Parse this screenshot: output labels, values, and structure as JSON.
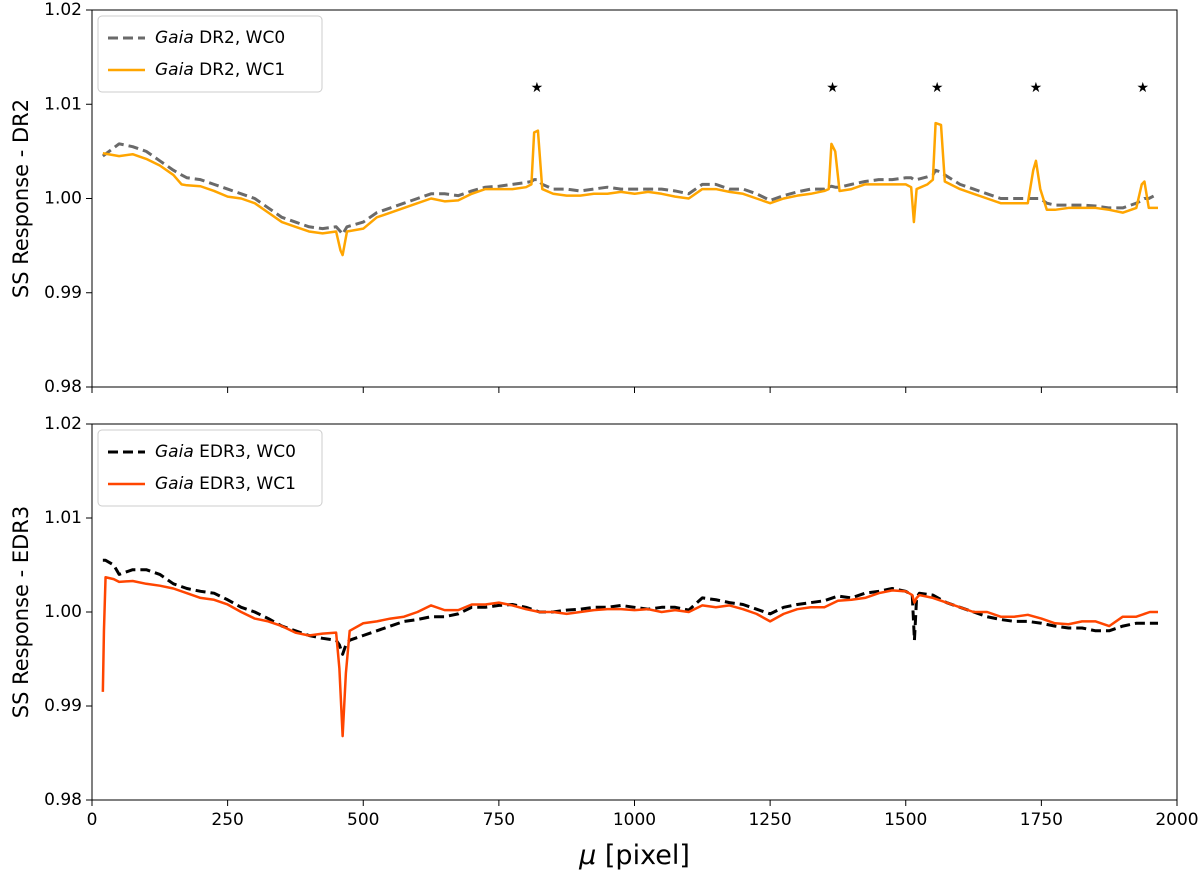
{
  "chart_data": [
    {
      "type": "line",
      "ylabel": "SS Response - DR2",
      "xlim": [
        0,
        2000
      ],
      "ylim": [
        0.98,
        1.02
      ],
      "xticks": [
        0,
        250,
        500,
        750,
        1000,
        1250,
        1500,
        1750,
        2000
      ],
      "xticklabels": false,
      "yticks": [
        0.98,
        0.99,
        {
          "value": 1.0,
          "label": "1.00"
        },
        1.01,
        1.02
      ],
      "legend": "upper left",
      "x": [
        20,
        50,
        75,
        100,
        125,
        150,
        165,
        175,
        200,
        225,
        250,
        275,
        300,
        325,
        350,
        375,
        400,
        425,
        450,
        458,
        462,
        470,
        500,
        525,
        550,
        575,
        600,
        625,
        650,
        675,
        700,
        725,
        750,
        775,
        800,
        810,
        815,
        822,
        830,
        850,
        875,
        900,
        925,
        950,
        975,
        1000,
        1025,
        1050,
        1075,
        1100,
        1125,
        1150,
        1175,
        1200,
        1225,
        1250,
        1275,
        1300,
        1325,
        1350,
        1358,
        1363,
        1370,
        1378,
        1400,
        1425,
        1450,
        1475,
        1500,
        1510,
        1515,
        1520,
        1540,
        1550,
        1555,
        1565,
        1572,
        1600,
        1625,
        1650,
        1675,
        1700,
        1725,
        1735,
        1740,
        1748,
        1760,
        1775,
        1800,
        1825,
        1850,
        1875,
        1900,
        1925,
        1935,
        1940,
        1948,
        1965
      ],
      "series": [
        {
          "name": "Gaia DR2, WC0",
          "color": "#6a6a6a",
          "dashed": true,
          "values": [
            1.0045,
            1.0058,
            1.0055,
            1.005,
            1.004,
            1.003,
            1.0025,
            1.0022,
            1.002,
            1.0015,
            1.001,
            1.0005,
            1.0,
            0.999,
            0.998,
            0.9975,
            0.997,
            0.9968,
            0.997,
            0.9965,
            0.9962,
            0.997,
            0.9975,
            0.9985,
            0.999,
            0.9995,
            1.0,
            1.0005,
            1.0005,
            1.0003,
            1.0008,
            1.0012,
            1.0013,
            1.0015,
            1.0017,
            1.0018,
            1.002,
            1.002,
            1.0015,
            1.001,
            1.001,
            1.0008,
            1.001,
            1.0012,
            1.001,
            1.001,
            1.001,
            1.001,
            1.0008,
            1.0005,
            1.0015,
            1.0015,
            1.001,
            1.001,
            1.0005,
            0.9998,
            1.0003,
            1.0007,
            1.001,
            1.001,
            1.0012,
            1.0013,
            1.0012,
            1.0012,
            1.0015,
            1.0018,
            1.002,
            1.002,
            1.0022,
            1.0022,
            1.002,
            1.002,
            1.0023,
            1.0025,
            1.003,
            1.0028,
            1.0025,
            1.0015,
            1.001,
            1.0005,
            1.0,
            1.0,
            1.0,
            1.0,
            1.0,
            1.0,
            0.9995,
            0.9993,
            0.9993,
            0.9993,
            0.9992,
            0.999,
            0.999,
            0.9995,
            0.9998,
            1.0,
            1.0,
            1.0005
          ]
        },
        {
          "name": "Gaia DR2, WC1",
          "color": "#ffa500",
          "dashed": false,
          "values": [
            1.0048,
            1.0045,
            1.0047,
            1.0042,
            1.0035,
            1.0025,
            1.0015,
            1.0014,
            1.0013,
            1.0008,
            1.0002,
            1.0,
            0.9995,
            0.9985,
            0.9975,
            0.997,
            0.9965,
            0.9963,
            0.9965,
            0.9945,
            0.994,
            0.9965,
            0.9968,
            0.998,
            0.9985,
            0.999,
            0.9995,
            1.0,
            0.9997,
            0.9998,
            1.0005,
            1.001,
            1.001,
            1.001,
            1.0012,
            1.0015,
            1.007,
            1.0072,
            1.001,
            1.0005,
            1.0003,
            1.0003,
            1.0005,
            1.0005,
            1.0007,
            1.0005,
            1.0007,
            1.0005,
            1.0002,
            1.0,
            1.001,
            1.001,
            1.0007,
            1.0005,
            1.0,
            0.9995,
            1.0,
            1.0003,
            1.0005,
            1.0008,
            1.001,
            1.0058,
            1.005,
            1.0008,
            1.001,
            1.0015,
            1.0015,
            1.0015,
            1.0015,
            1.0012,
            0.9975,
            1.001,
            1.0015,
            1.002,
            1.008,
            1.0078,
            1.0018,
            1.001,
            1.0005,
            1.0,
            0.9995,
            0.9995,
            0.9995,
            1.003,
            1.004,
            1.001,
            0.9988,
            0.9988,
            0.999,
            0.999,
            0.999,
            0.9988,
            0.9985,
            0.999,
            1.0015,
            1.0018,
            0.999,
            0.999
          ]
        }
      ],
      "annotations": [
        {
          "text": "★",
          "x": 820,
          "y": 1.0117
        },
        {
          "text": "★",
          "x": 1365,
          "y": 1.0117
        },
        {
          "text": "★",
          "x": 1558,
          "y": 1.0117
        },
        {
          "text": "★",
          "x": 1740,
          "y": 1.0117
        },
        {
          "text": "★",
          "x": 1937,
          "y": 1.0117
        }
      ]
    },
    {
      "type": "line",
      "ylabel": "SS Response - EDR3",
      "xlabel": "μ [pixel]",
      "xlim": [
        0,
        2000
      ],
      "ylim": [
        0.98,
        1.02
      ],
      "xticks": [
        0,
        250,
        500,
        750,
        1000,
        1250,
        1500,
        1750,
        2000
      ],
      "xticklabels": true,
      "yticks": [
        0.98,
        0.99,
        {
          "value": 1.0,
          "label": "1.00"
        },
        1.01,
        1.02
      ],
      "legend": "upper left",
      "x": [
        20,
        22,
        25,
        40,
        50,
        75,
        100,
        125,
        150,
        175,
        200,
        225,
        250,
        275,
        300,
        325,
        350,
        375,
        400,
        425,
        450,
        456,
        462,
        468,
        475,
        500,
        525,
        550,
        575,
        600,
        625,
        650,
        675,
        700,
        725,
        750,
        775,
        800,
        825,
        850,
        875,
        900,
        925,
        950,
        975,
        1000,
        1025,
        1050,
        1075,
        1100,
        1125,
        1150,
        1175,
        1200,
        1225,
        1250,
        1275,
        1300,
        1325,
        1350,
        1375,
        1400,
        1425,
        1450,
        1475,
        1500,
        1512,
        1516,
        1520,
        1525,
        1550,
        1575,
        1600,
        1625,
        1650,
        1675,
        1700,
        1725,
        1750,
        1775,
        1800,
        1825,
        1850,
        1875,
        1900,
        1925,
        1950,
        1965
      ],
      "series": [
        {
          "name": "Gaia EDR3, WC0",
          "color": "#000000",
          "dashed": true,
          "values": [
            1.0055,
            1.0055,
            1.0055,
            1.005,
            1.004,
            1.0045,
            1.0045,
            1.004,
            1.003,
            1.0025,
            1.0022,
            1.002,
            1.0013,
            1.0005,
            1.0,
            0.9993,
            0.9985,
            0.998,
            0.9975,
            0.9972,
            0.997,
            0.9965,
            0.9955,
            0.9965,
            0.997,
            0.9975,
            0.998,
            0.9985,
            0.999,
            0.9992,
            0.9995,
            0.9995,
            0.9998,
            1.0005,
            1.0005,
            1.0007,
            1.0008,
            1.0005,
            1.0,
            1.0,
            1.0002,
            1.0003,
            1.0005,
            1.0005,
            1.0007,
            1.0005,
            1.0003,
            1.0005,
            1.0005,
            1.0002,
            1.0015,
            1.0013,
            1.001,
            1.0008,
            1.0003,
            0.9998,
            1.0005,
            1.0008,
            1.001,
            1.0012,
            1.0017,
            1.0015,
            1.002,
            1.0022,
            1.0025,
            1.0022,
            1.0018,
            0.997,
            1.0015,
            1.002,
            1.0018,
            1.001,
            1.0005,
            1.0,
            0.9995,
            0.9992,
            0.999,
            0.999,
            0.9988,
            0.9985,
            0.9983,
            0.9983,
            0.998,
            0.998,
            0.9985,
            0.9988,
            0.9988,
            0.9988
          ]
        },
        {
          "name": "Gaia EDR3, WC1",
          "color": "#ff4500",
          "dashed": false,
          "values": [
            0.9915,
            0.998,
            1.0037,
            1.0035,
            1.0032,
            1.0033,
            1.003,
            1.0028,
            1.0025,
            1.002,
            1.0015,
            1.0013,
            1.0008,
            1.0,
            0.9993,
            0.999,
            0.9985,
            0.9978,
            0.9975,
            0.9977,
            0.9978,
            0.994,
            0.9868,
            0.9935,
            0.998,
            0.9988,
            0.999,
            0.9993,
            0.9995,
            1.0,
            1.0007,
            1.0002,
            1.0002,
            1.0008,
            1.0008,
            1.001,
            1.0007,
            1.0003,
            1.0,
            1.0,
            0.9998,
            1.0,
            1.0002,
            1.0003,
            1.0003,
            1.0002,
            1.0003,
            1.0,
            1.0002,
            1.0,
            1.0007,
            1.0005,
            1.0007,
            1.0003,
            0.9998,
            0.999,
            0.9998,
            1.0003,
            1.0005,
            1.0005,
            1.0012,
            1.0013,
            1.0015,
            1.002,
            1.0023,
            1.0022,
            1.0018,
            1.001,
            1.0015,
            1.0018,
            1.0015,
            1.001,
            1.0005,
            1.0,
            1.0,
            0.9995,
            0.9995,
            0.9997,
            0.9993,
            0.9988,
            0.9987,
            0.999,
            0.999,
            0.9985,
            0.9995,
            0.9995,
            1.0,
            1.0
          ]
        }
      ]
    }
  ]
}
